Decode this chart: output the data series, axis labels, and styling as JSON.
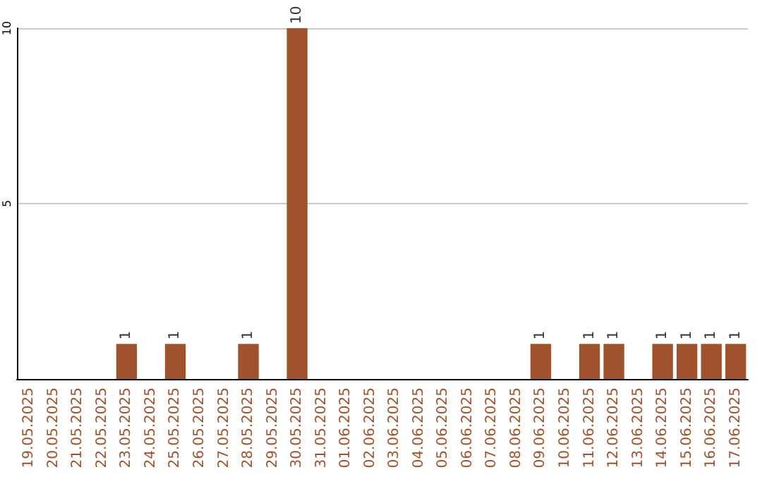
{
  "chart_data": {
    "type": "bar",
    "categories": [
      "19.05.2025",
      "20.05.2025",
      "21.05.2025",
      "22.05.2025",
      "23.05.2025",
      "24.05.2025",
      "25.05.2025",
      "26.05.2025",
      "27.05.2025",
      "28.05.2025",
      "29.05.2025",
      "30.05.2025",
      "31.05.2025",
      "01.06.2025",
      "02.06.2025",
      "03.06.2025",
      "04.06.2025",
      "05.06.2025",
      "06.06.2025",
      "07.06.2025",
      "08.06.2025",
      "09.06.2025",
      "10.06.2025",
      "11.06.2025",
      "12.06.2025",
      "13.06.2025",
      "14.06.2025",
      "15.06.2025",
      "16.06.2025",
      "17.06.2025"
    ],
    "values": [
      0,
      0,
      0,
      0,
      1,
      0,
      1,
      0,
      0,
      1,
      0,
      10,
      0,
      0,
      0,
      0,
      0,
      0,
      0,
      0,
      0,
      1,
      0,
      1,
      1,
      0,
      1,
      1,
      1,
      1
    ],
    "value_labels": [
      null,
      null,
      null,
      null,
      "1",
      null,
      "1",
      null,
      null,
      "1",
      null,
      "10",
      null,
      null,
      null,
      null,
      null,
      null,
      null,
      null,
      null,
      "1",
      null,
      "1",
      "1",
      null,
      "1",
      "1",
      "1",
      "1"
    ],
    "color": "#a0522d",
    "ylim": [
      0,
      10
    ],
    "yticks": [
      5,
      10
    ],
    "grid": "y"
  }
}
